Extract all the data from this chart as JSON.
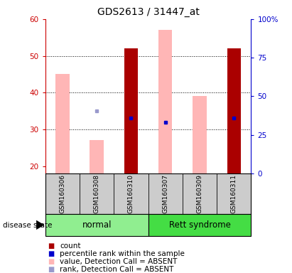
{
  "title": "GDS2613 / 31447_at",
  "samples": [
    "GSM160306",
    "GSM160308",
    "GSM160310",
    "GSM160307",
    "GSM160309",
    "GSM160311"
  ],
  "ylim_left": [
    18,
    60
  ],
  "ylim_right": [
    0,
    100
  ],
  "yticks_left": [
    20,
    30,
    40,
    50,
    60
  ],
  "yticks_right": [
    0,
    25,
    50,
    75,
    100
  ],
  "left_axis_color": "#cc0000",
  "right_axis_color": "#0000cc",
  "bar_color_dark_red": "#aa0000",
  "bar_color_light_pink": "#ffb6b6",
  "dot_color_blue": "#0000cc",
  "dot_color_light_blue": "#9999cc",
  "values_pink": [
    45,
    27,
    52,
    57,
    39,
    52
  ],
  "values_dark_red": [
    null,
    null,
    52,
    null,
    null,
    52
  ],
  "dots_blue_y": [
    null,
    null,
    33,
    32,
    null,
    33
  ],
  "dots_lightblue_y": [
    null,
    35,
    null,
    null,
    null,
    null
  ],
  "legend_items": [
    {
      "color": "#aa0000",
      "label": "count"
    },
    {
      "color": "#0000cc",
      "label": "percentile rank within the sample"
    },
    {
      "color": "#ffb6b6",
      "label": "value, Detection Call = ABSENT"
    },
    {
      "color": "#9999cc",
      "label": "rank, Detection Call = ABSENT"
    }
  ],
  "bar_width": 0.4,
  "label_area_color": "#cccccc",
  "disease_state_label": "disease state",
  "normal_color": "#90ee90",
  "rett_color": "#44dd44",
  "title_fontsize": 10,
  "legend_fontsize": 7.5,
  "dotgrid_yticks": [
    30,
    40,
    50
  ]
}
